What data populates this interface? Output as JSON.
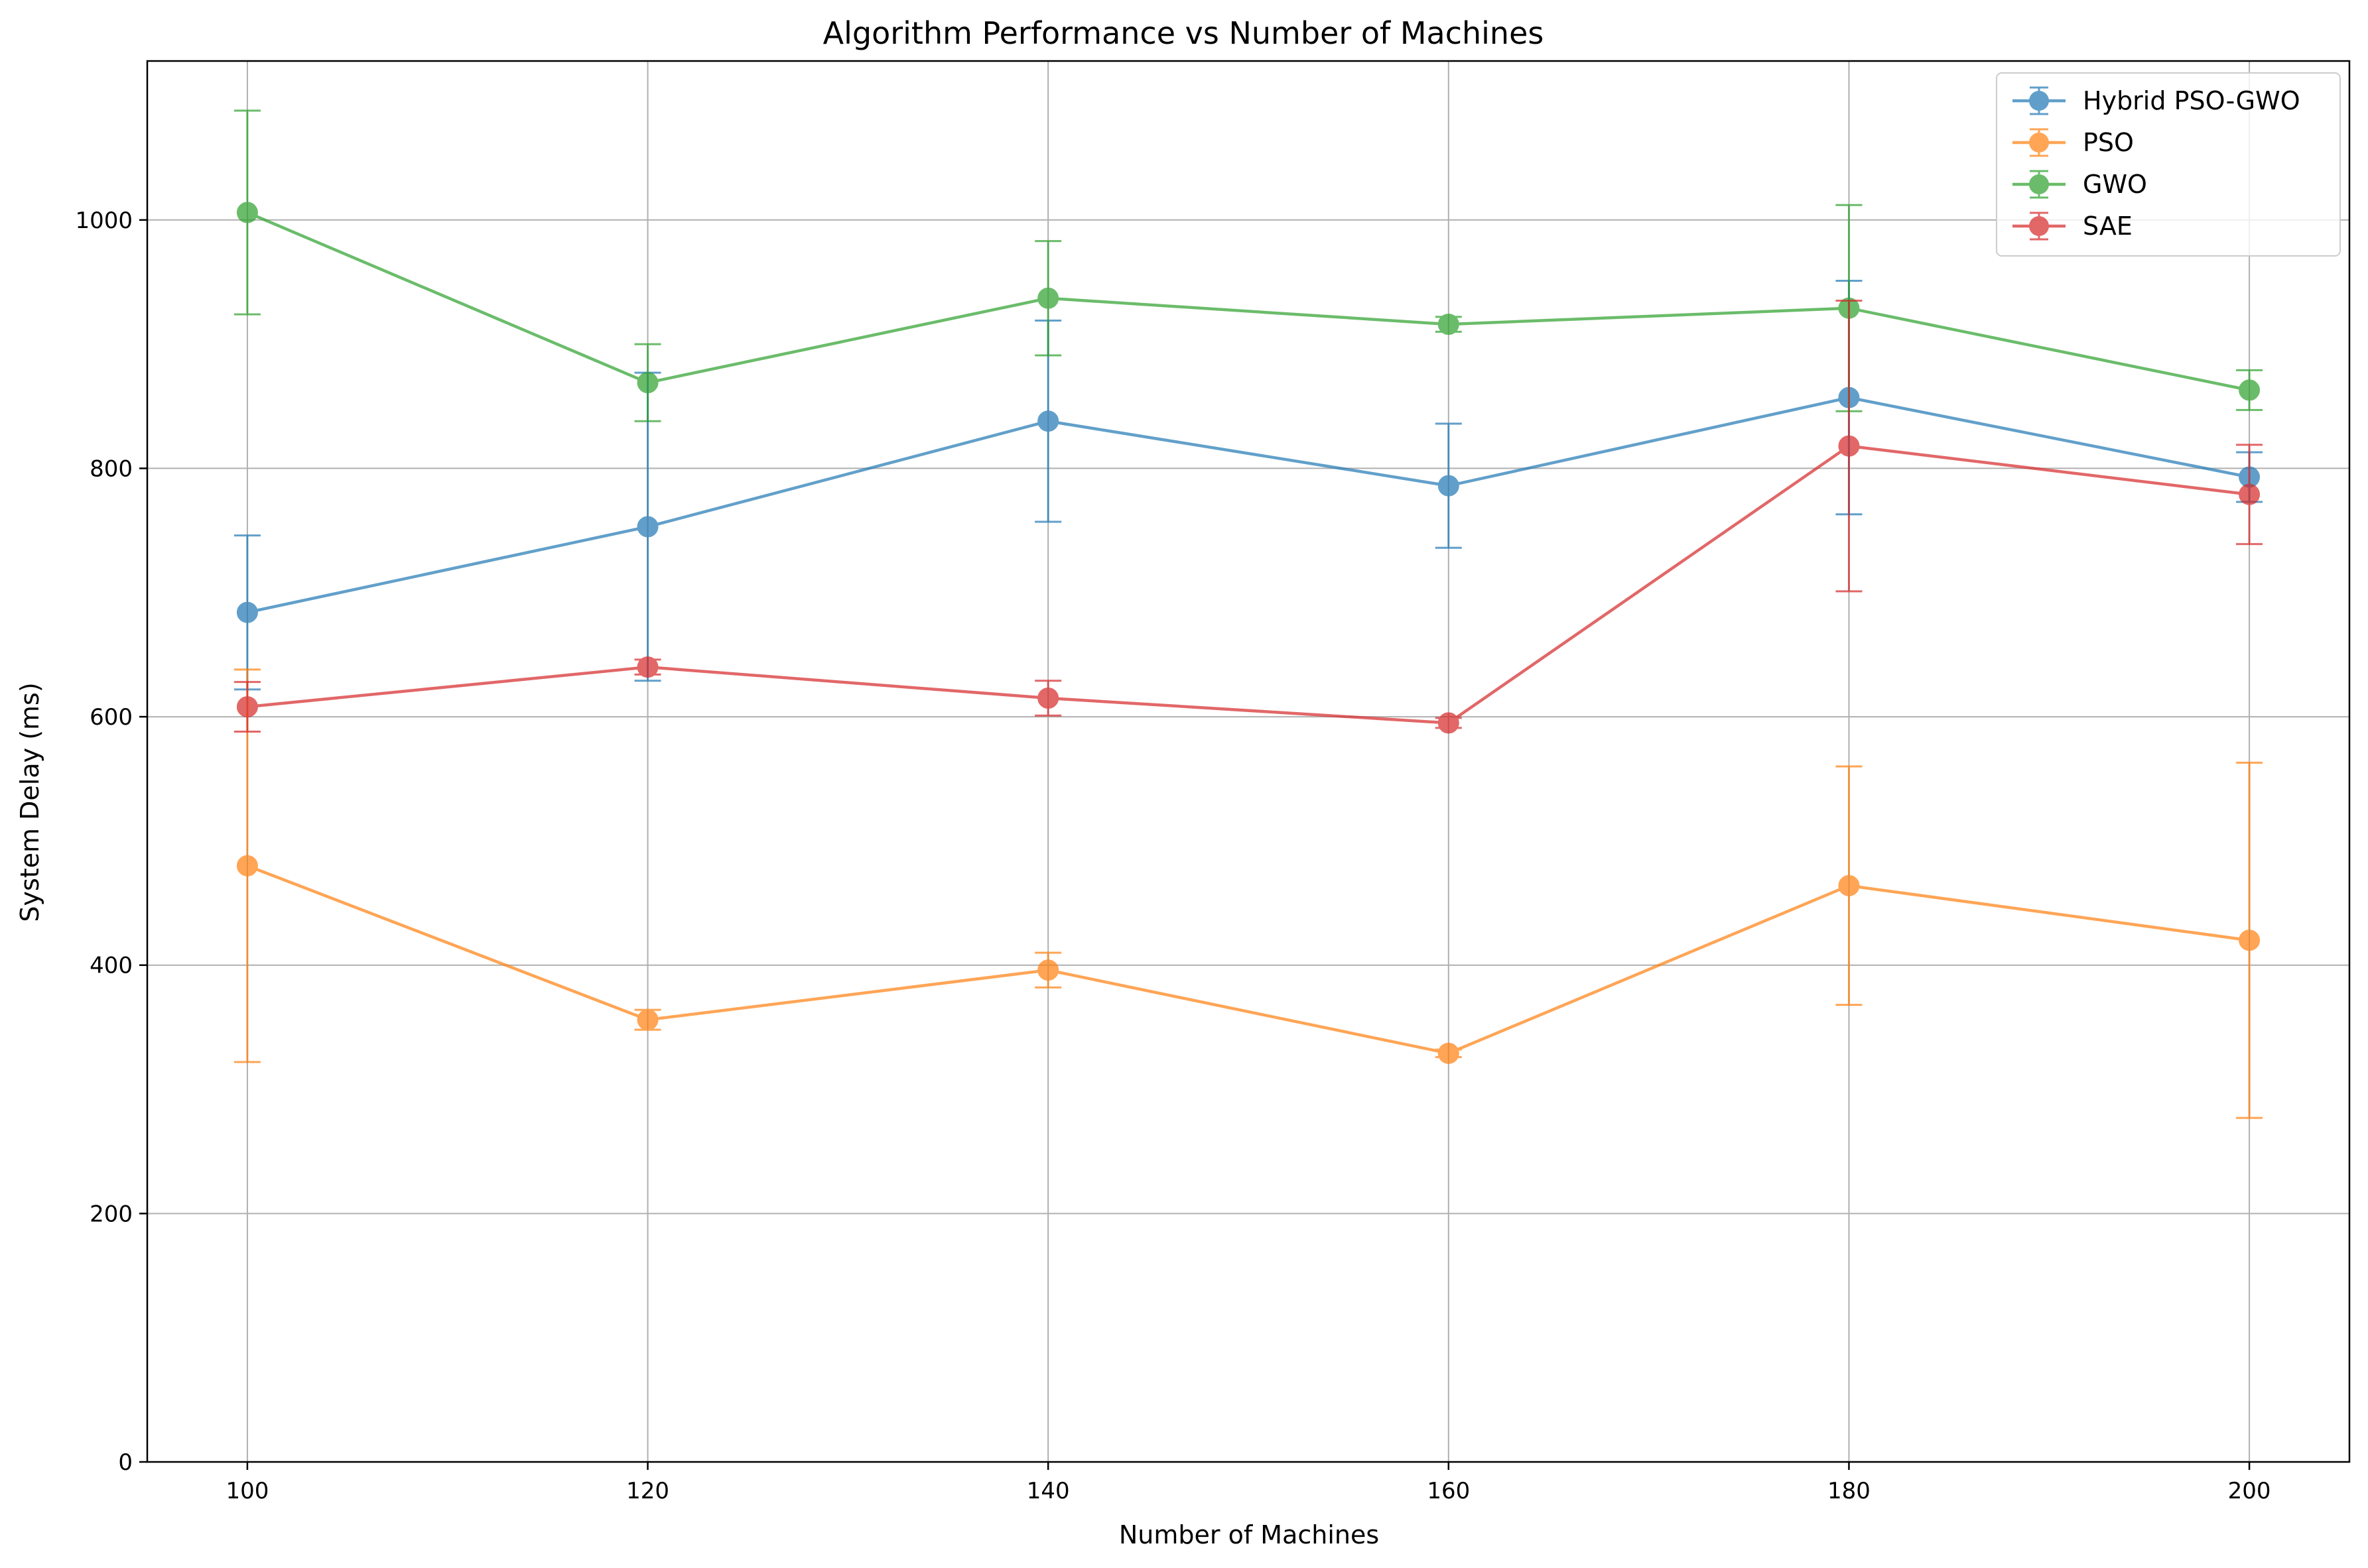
{
  "chart_data": {
    "type": "line",
    "title": "Algorithm Performance vs Number of Machines",
    "xlabel": "Number of Machines",
    "ylabel": "System Delay (ms)",
    "x": [
      100,
      120,
      140,
      160,
      180,
      200
    ],
    "xticks": [
      100,
      120,
      140,
      160,
      180,
      200
    ],
    "yticks": [
      0,
      200,
      400,
      600,
      800,
      1000
    ],
    "xlim": [
      95,
      205
    ],
    "ylim": [
      0,
      1128
    ],
    "grid": true,
    "legend_position": "top-right",
    "error_bars": true,
    "series": [
      {
        "name": "Hybrid PSO-GWO",
        "color": "#1f77b4",
        "values": [
          684,
          753,
          838,
          786,
          857,
          793
        ],
        "err": [
          62,
          124,
          81,
          50,
          94,
          20
        ]
      },
      {
        "name": "PSO",
        "color": "#ff7f0e",
        "values": [
          480,
          356,
          396,
          329,
          464,
          420
        ],
        "err": [
          158,
          8,
          14,
          3,
          96,
          143
        ]
      },
      {
        "name": "GWO",
        "color": "#2ca02c",
        "values": [
          1006,
          869,
          937,
          916,
          929,
          863
        ],
        "err": [
          82,
          31,
          46,
          6,
          83,
          16
        ]
      },
      {
        "name": "SAE",
        "color": "#d62728",
        "values": [
          608,
          640,
          615,
          595,
          818,
          779
        ],
        "err": [
          20,
          6,
          14,
          4,
          117,
          40
        ]
      }
    ]
  }
}
